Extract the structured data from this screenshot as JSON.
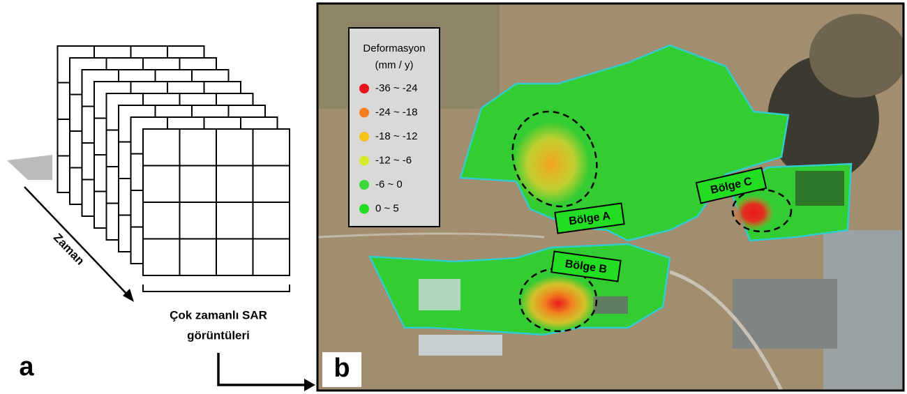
{
  "panel_a": {
    "label": "a",
    "time_axis": "Zaman",
    "caption": [
      "Çok zamanlı SAR",
      "görüntüleri"
    ]
  },
  "panel_b": {
    "label": "b",
    "legend": {
      "title": [
        "Deformasyon",
        "(mm / y)"
      ],
      "items": [
        {
          "label": "-36 ~ -24",
          "color": "#e8141c"
        },
        {
          "label": "-24 ~ -18",
          "color": "#f57f20"
        },
        {
          "label": "-18 ~ -12",
          "color": "#f5c218"
        },
        {
          "label": "-12 ~ -6",
          "color": "#d6ea2a"
        },
        {
          "label": "-6 ~ 0",
          "color": "#3ad63a"
        },
        {
          "label": "0 ~ 5",
          "color": "#22dd22"
        }
      ]
    },
    "regions": [
      {
        "label": "Bölge A"
      },
      {
        "label": "Bölge B"
      },
      {
        "label": "Bölge C"
      }
    ]
  }
}
